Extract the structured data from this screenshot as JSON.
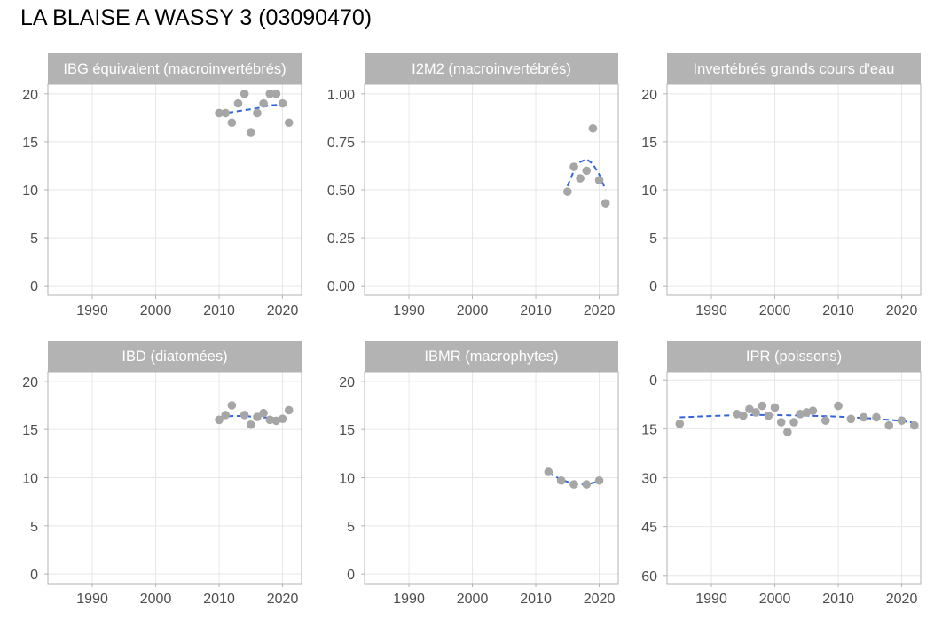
{
  "title": "LA BLAISE A WASSY 3 (03090470)",
  "colors": {
    "point": "#a6a6a6",
    "trend": "#3366dd",
    "strip": "#b3b3b3",
    "strip_text": "#ffffff",
    "grid": "#e6e6e6",
    "border": "#b3b3b3",
    "tick_text": "#4d4d4d"
  },
  "chart_data": [
    {
      "type": "scatter",
      "title": "IBG équivalent (macroinvertébrés)",
      "xlim": [
        1983,
        2023
      ],
      "ylim": [
        -1,
        21
      ],
      "x_ticks": [
        1990,
        2000,
        2010,
        2020
      ],
      "y_ticks": [
        0,
        5,
        10,
        15,
        20
      ],
      "y_tick_labels": [
        "0",
        "5",
        "10",
        "15",
        "20"
      ],
      "reversed_y": false,
      "points": [
        [
          2010,
          18
        ],
        [
          2011,
          18
        ],
        [
          2012,
          17
        ],
        [
          2013,
          19
        ],
        [
          2014,
          20
        ],
        [
          2015,
          16
        ],
        [
          2016,
          18
        ],
        [
          2017,
          19
        ],
        [
          2018,
          20
        ],
        [
          2019,
          20
        ],
        [
          2020,
          19
        ],
        [
          2021,
          17
        ]
      ],
      "trend": [
        [
          2010,
          17.9
        ],
        [
          2013,
          18.2
        ],
        [
          2016,
          18.5
        ],
        [
          2018,
          18.8
        ],
        [
          2020,
          18.9
        ],
        [
          2021,
          18.7
        ]
      ]
    },
    {
      "type": "scatter",
      "title": "I2M2 (macroinvertébrés)",
      "xlim": [
        1983,
        2023
      ],
      "ylim": [
        -0.05,
        1.05
      ],
      "x_ticks": [
        1990,
        2000,
        2010,
        2020
      ],
      "y_ticks": [
        0,
        0.25,
        0.5,
        0.75,
        1.0
      ],
      "y_tick_labels": [
        "0.00",
        "0.25",
        "0.50",
        "0.75",
        "1.00"
      ],
      "reversed_y": false,
      "points": [
        [
          2015,
          0.49
        ],
        [
          2016,
          0.62
        ],
        [
          2017,
          0.56
        ],
        [
          2018,
          0.6
        ],
        [
          2019,
          0.82
        ],
        [
          2020,
          0.55
        ],
        [
          2021,
          0.43
        ]
      ],
      "trend": [
        [
          2015,
          0.52
        ],
        [
          2016,
          0.6
        ],
        [
          2017,
          0.645
        ],
        [
          2018,
          0.66
        ],
        [
          2019,
          0.635
        ],
        [
          2020,
          0.58
        ],
        [
          2021,
          0.5
        ]
      ]
    },
    {
      "type": "scatter",
      "title": "Invertébrés grands cours d'eau",
      "xlim": [
        1983,
        2023
      ],
      "ylim": [
        -1,
        21
      ],
      "x_ticks": [
        1990,
        2000,
        2010,
        2020
      ],
      "y_ticks": [
        0,
        5,
        10,
        15,
        20
      ],
      "y_tick_labels": [
        "0",
        "5",
        "10",
        "15",
        "20"
      ],
      "reversed_y": false,
      "points": [],
      "trend": []
    },
    {
      "type": "scatter",
      "title": "IBD (diatomées)",
      "xlim": [
        1983,
        2023
      ],
      "ylim": [
        -1,
        21
      ],
      "x_ticks": [
        1990,
        2000,
        2010,
        2020
      ],
      "y_ticks": [
        0,
        5,
        10,
        15,
        20
      ],
      "y_tick_labels": [
        "0",
        "5",
        "10",
        "15",
        "20"
      ],
      "reversed_y": false,
      "points": [
        [
          2010,
          16.0
        ],
        [
          2011,
          16.5
        ],
        [
          2012,
          17.5
        ],
        [
          2014,
          16.5
        ],
        [
          2015,
          15.5
        ],
        [
          2016,
          16.3
        ],
        [
          2017,
          16.7
        ],
        [
          2018,
          16.0
        ],
        [
          2019,
          15.9
        ],
        [
          2020,
          16.1
        ],
        [
          2021,
          17.0
        ]
      ],
      "trend": [
        [
          2010,
          16.3
        ],
        [
          2012,
          16.4
        ],
        [
          2014,
          16.4
        ],
        [
          2016,
          16.3
        ],
        [
          2018,
          16.2
        ],
        [
          2020,
          16.15
        ],
        [
          2021,
          16.2
        ]
      ]
    },
    {
      "type": "scatter",
      "title": "IBMR (macrophytes)",
      "xlim": [
        1983,
        2023
      ],
      "ylim": [
        -1,
        21
      ],
      "x_ticks": [
        1990,
        2000,
        2010,
        2020
      ],
      "y_ticks": [
        0,
        5,
        10,
        15,
        20
      ],
      "y_tick_labels": [
        "0",
        "5",
        "10",
        "15",
        "20"
      ],
      "reversed_y": false,
      "points": [
        [
          2012,
          10.6
        ],
        [
          2014,
          9.7
        ],
        [
          2016,
          9.3
        ],
        [
          2018,
          9.3
        ],
        [
          2020,
          9.7
        ]
      ],
      "trend": [
        [
          2012,
          10.5
        ],
        [
          2014,
          9.8
        ],
        [
          2016,
          9.35
        ],
        [
          2018,
          9.3
        ],
        [
          2020,
          9.6
        ]
      ]
    },
    {
      "type": "scatter",
      "title": "IPR (poissons)",
      "xlim": [
        1983,
        2023
      ],
      "ylim": [
        -2.5,
        62.5
      ],
      "x_ticks": [
        1990,
        2000,
        2010,
        2020
      ],
      "y_ticks": [
        0,
        15,
        30,
        45,
        60
      ],
      "y_tick_labels": [
        "0",
        "15",
        "30",
        "45",
        "60"
      ],
      "reversed_y": true,
      "points": [
        [
          1985,
          13.5
        ],
        [
          1994,
          10.5
        ],
        [
          1995,
          11
        ],
        [
          1996,
          9
        ],
        [
          1997,
          10
        ],
        [
          1998,
          8
        ],
        [
          1999,
          11
        ],
        [
          2000,
          8.5
        ],
        [
          2001,
          13
        ],
        [
          2002,
          16
        ],
        [
          2003,
          13
        ],
        [
          2004,
          10.5
        ],
        [
          2005,
          10
        ],
        [
          2006,
          9.5
        ],
        [
          2008,
          12.5
        ],
        [
          2010,
          8
        ],
        [
          2012,
          12
        ],
        [
          2014,
          11.5
        ],
        [
          2016,
          11.5
        ],
        [
          2018,
          14
        ],
        [
          2020,
          12.5
        ],
        [
          2022,
          14
        ]
      ],
      "trend": [
        [
          1985,
          11.5
        ],
        [
          1990,
          11.1
        ],
        [
          1995,
          10.8
        ],
        [
          2000,
          10.8
        ],
        [
          2005,
          11
        ],
        [
          2010,
          11.3
        ],
        [
          2015,
          11.8
        ],
        [
          2020,
          12.6
        ],
        [
          2022,
          13.2
        ]
      ]
    }
  ]
}
